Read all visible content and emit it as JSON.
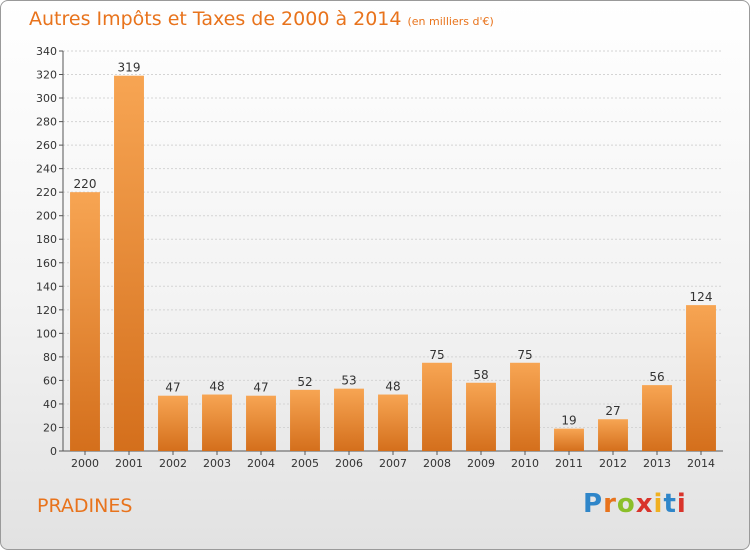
{
  "header": {
    "title": "Autres Impôts et Taxes de 2000 à 2014",
    "subtitle": "(en milliers d'€)"
  },
  "footer": {
    "city": "PRADINES",
    "logo_letters": [
      "P",
      "r",
      "o",
      "x",
      "i",
      "t",
      "i"
    ],
    "logo_colors": [
      "#2f86c9",
      "#e8731c",
      "#8bbf2a",
      "#d9342b",
      "#f0b020",
      "#2f86c9",
      "#d9342b"
    ]
  },
  "colors": {
    "accent": "#e8731c",
    "bar_top": "#f7a553",
    "bar_bottom": "#d46f1c"
  },
  "chart_data": {
    "type": "bar",
    "title": "Autres Impôts et Taxes de 2000 à 2014",
    "subtitle": "(en milliers d'€)",
    "categories": [
      "2000",
      "2001",
      "2002",
      "2003",
      "2004",
      "2005",
      "2006",
      "2007",
      "2008",
      "2009",
      "2010",
      "2011",
      "2012",
      "2013",
      "2014"
    ],
    "values": [
      220,
      319,
      47,
      48,
      47,
      52,
      53,
      48,
      75,
      58,
      75,
      19,
      27,
      56,
      124
    ],
    "ylim": [
      0,
      340
    ],
    "yticks": [
      0,
      20,
      40,
      60,
      80,
      100,
      120,
      140,
      160,
      180,
      200,
      220,
      240,
      260,
      280,
      300,
      320,
      340
    ],
    "grid": true,
    "data_labels": true
  }
}
